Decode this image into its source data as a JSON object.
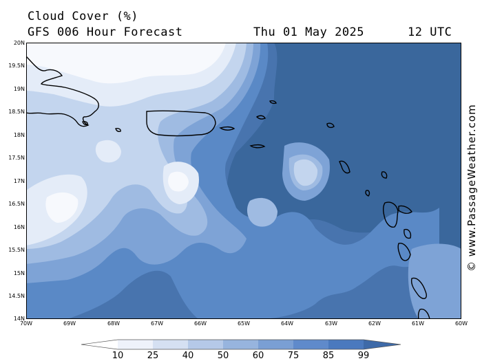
{
  "header": {
    "title": "Cloud Cover (%)",
    "subtitle": "GFS 006 Hour Forecast",
    "date": "Thu 01 May 2025",
    "time": "12 UTC"
  },
  "credit": "© www.PassageWeather.com",
  "lat_labels": [
    "20N",
    "19.5N",
    "19N",
    "18.5N",
    "18N",
    "17.5N",
    "17N",
    "16.5N",
    "16N",
    "15.5N",
    "15N",
    "14.5N",
    "14N"
  ],
  "lon_labels": [
    "70W",
    "69W",
    "68W",
    "67W",
    "66W",
    "65W",
    "64W",
    "63W",
    "62W",
    "61W",
    "60W"
  ],
  "legend": {
    "labels": [
      "10",
      "25",
      "40",
      "50",
      "60",
      "75",
      "85",
      "99"
    ],
    "colors": [
      "#ffffff",
      "#eef2fa",
      "#d5e0f2",
      "#b5c9e8",
      "#97b4de",
      "#7a9fd4",
      "#5f8acb",
      "#4a79be",
      "#3e6aa8"
    ]
  },
  "map_colors": {
    "background": "#3a679c",
    "layer_85": "#4874ae",
    "layer_75": "#5a89c6",
    "layer_60": "#7ea3d6",
    "layer_50": "#9fbbe2",
    "layer_40": "#c3d5ee",
    "layer_25": "#e4ecf8",
    "layer_10": "#f7f9fd"
  }
}
